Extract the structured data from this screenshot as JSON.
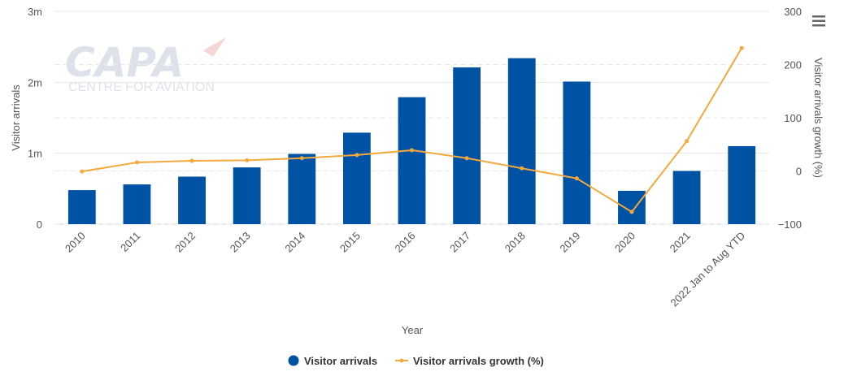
{
  "chart_data": {
    "type": "bar",
    "categories": [
      "2010",
      "2011",
      "2012",
      "2013",
      "2014",
      "2015",
      "2016",
      "2017",
      "2018",
      "2019",
      "2020",
      "2021",
      "2022 Jan to Aug YTD"
    ],
    "series": [
      {
        "name": "Visitor arrivals",
        "type": "bar",
        "axis": "left",
        "color": "#0052A5",
        "values": [
          480000,
          560000,
          670000,
          800000,
          990000,
          1290000,
          1790000,
          2210000,
          2340000,
          2010000,
          470000,
          750000,
          1100000
        ]
      },
      {
        "name": "Visitor arrivals growth (%)",
        "type": "line",
        "axis": "right",
        "color": "#F4A93B",
        "values": [
          -1,
          16,
          19,
          20,
          24,
          30,
          39,
          24,
          5,
          -14,
          -77,
          56,
          231
        ]
      }
    ],
    "xlabel": "Year",
    "ylabel": "Visitor arrivals",
    "y2label": "Visitor arrivals growth (%)",
    "ylim": [
      0,
      3000000
    ],
    "y2lim": [
      -100,
      300
    ],
    "yticks": [
      "0",
      "1m",
      "2m",
      "3m"
    ],
    "y2ticks": [
      "−100",
      "0",
      "100",
      "200",
      "300"
    ],
    "grid": true,
    "legend_position": "bottom-center"
  },
  "watermark": {
    "line1": "CAPA",
    "line2": "CENTRE FOR AVIATION"
  },
  "menu_icon": "hamburger-menu-icon",
  "colors": {
    "bar": "#0052A5",
    "line": "#F4A93B",
    "grid": "#e6e6e6"
  }
}
